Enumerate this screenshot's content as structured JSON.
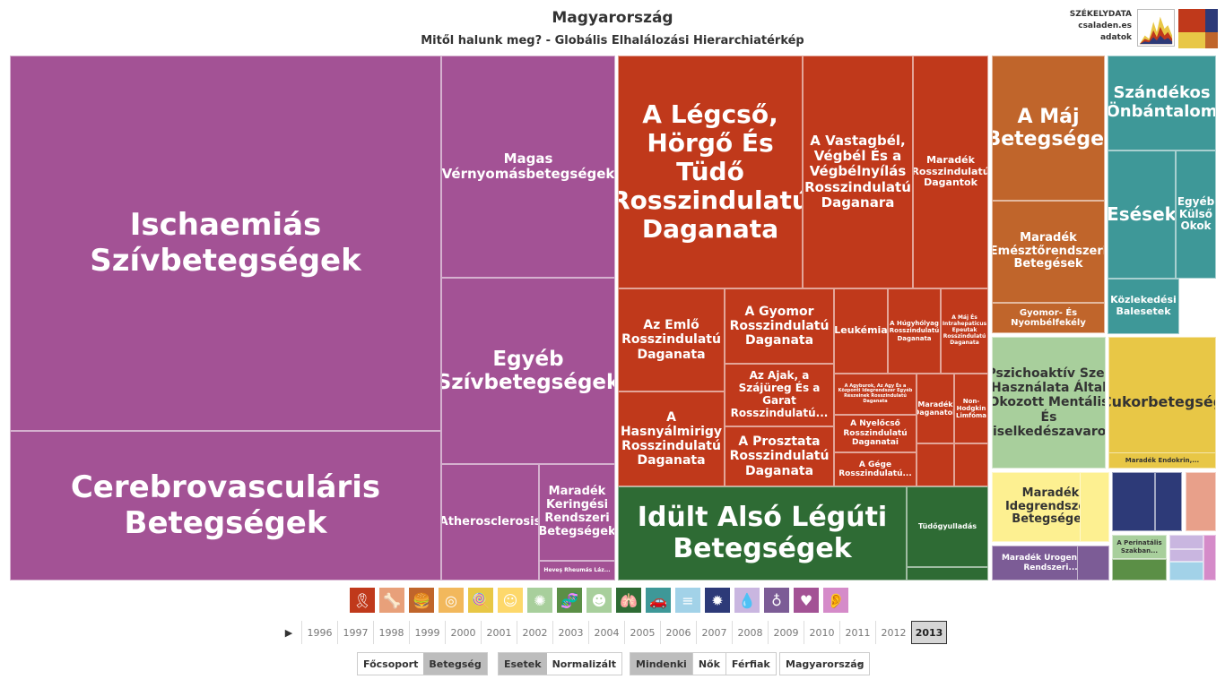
{
  "header": {
    "title": "Magyarország",
    "subtitle": "Mitől halunk meg? - Globális Elhalálozási Hierarchiatérkép"
  },
  "brand": {
    "line1": "SZÉKELYDATA",
    "line2": "csaladen.es",
    "line3": "adatok"
  },
  "chart_data": {
    "type": "treemap",
    "tiles": [
      {
        "label": "Ischaemiás Szívbetegségek",
        "group": "Keringési",
        "color": "#a35295"
      },
      {
        "label": "Cerebrovasculáris Betegségek",
        "group": "Keringési",
        "color": "#a35295"
      },
      {
        "label": "Magas Vérnyomásbetegségek",
        "group": "Keringési",
        "color": "#a35295"
      },
      {
        "label": "Egyéb Szívbetegségek",
        "group": "Keringési",
        "color": "#a35295"
      },
      {
        "label": "Atherosclerosis",
        "group": "Keringési",
        "color": "#a35295"
      },
      {
        "label": "Maradék Keringési Rendszeri Betegségek",
        "group": "Keringési",
        "color": "#a35295"
      },
      {
        "label": "Heveş Rheumás Láz...",
        "group": "Keringési",
        "color": "#a35295"
      },
      {
        "label": "A Légcső, Hörgő És Tüdő Rosszindulatú Daganata",
        "group": "Daganatok",
        "color": "#c0391b"
      },
      {
        "label": "A Vastagbél, Végbél És a Végbélnyílás Rosszindulatú Daganara",
        "group": "Daganatok",
        "color": "#c0391b"
      },
      {
        "label": "Maradék Rosszindulatú Dagantok",
        "group": "Daganatok",
        "color": "#c0391b"
      },
      {
        "label": "Az Emlő Rosszindulatú Daganata",
        "group": "Daganatok",
        "color": "#c0391b"
      },
      {
        "label": "A Gyomor Rosszindulatú Daganata",
        "group": "Daganatok",
        "color": "#c0391b"
      },
      {
        "label": "Leukémia",
        "group": "Daganatok",
        "color": "#c0391b"
      },
      {
        "label": "A Húgyhólyag Rosszindulatú Daganata",
        "group": "Daganatok",
        "color": "#c0391b"
      },
      {
        "label": "A Máj És Intrahepaticus Epeutak Rosszindulatú Daganata",
        "group": "Daganatok",
        "color": "#c0391b"
      },
      {
        "label": "A Hasnyálmirigy Rosszindulatú Daganata",
        "group": "Daganatok",
        "color": "#c0391b"
      },
      {
        "label": "Az Ajak, a Szájüreg És a Garat Rosszindulatú...",
        "group": "Daganatok",
        "color": "#c0391b"
      },
      {
        "label": "A Prosztata Rosszindulatú Daganata",
        "group": "Daganatok",
        "color": "#c0391b"
      },
      {
        "label": "A Agyburok, Az Agy És a Központi Idegrendszer Egyéb Részeinek Rosszindulatú Daganata",
        "group": "Daganatok",
        "color": "#c0391b"
      },
      {
        "label": "A Nyelőcső Rosszindulatú Daganatai",
        "group": "Daganatok",
        "color": "#c0391b"
      },
      {
        "label": "A Gége Rosszindulatú...",
        "group": "Daganatok",
        "color": "#c0391b"
      },
      {
        "label": "Maradék Daganatok",
        "group": "Daganatok",
        "color": "#c0391b"
      },
      {
        "label": "Non-Hodgkin Limfóma",
        "group": "Daganatok",
        "color": "#c0391b"
      },
      {
        "label": "Idült Alsó Légúti Betegségek",
        "group": "Légzőszervi",
        "color": "#2e6b34"
      },
      {
        "label": "Tüdőgyulladás",
        "group": "Légzőszervi",
        "color": "#2e6b34"
      },
      {
        "label": "A Máj Betegségei",
        "group": "Emésztőrendszeri",
        "color": "#c0652b"
      },
      {
        "label": "Maradék Emésztőrendszeri Betegések",
        "group": "Emésztőrendszeri",
        "color": "#c0652b"
      },
      {
        "label": "Gyomor- És Nyombélfekély",
        "group": "Emésztőrendszeri",
        "color": "#c0652b"
      },
      {
        "label": "Szándékos Önbántalom",
        "group": "Sérülések",
        "color": "#3e9898"
      },
      {
        "label": "Esések",
        "group": "Sérülések",
        "color": "#3e9898"
      },
      {
        "label": "Egyéb Külső Okok",
        "group": "Sérülések",
        "color": "#3e9898"
      },
      {
        "label": "Közlekedési Balesetek",
        "group": "Sérülések",
        "color": "#3e9898"
      },
      {
        "label": "Pszichoaktív Szer Használata Által Okozott Mentális És Viselkedészavarok",
        "group": "Mentális",
        "color": "#a8cf9c"
      },
      {
        "label": "Cukorbetegség",
        "group": "Endokrin",
        "color": "#e8c746"
      },
      {
        "label": "Maradék Endokrin,...",
        "group": "Endokrin",
        "color": "#e8c746"
      },
      {
        "label": "Maradék Idegrendszeri Betegségek",
        "group": "Ideg",
        "color": "#fdf091"
      },
      {
        "label": "Maradék Urogenitális Rendszeri...",
        "group": "Urogenitális",
        "color": "#7c5c96"
      },
      {
        "label": "A Perinatális Szakban...",
        "group": "Perinatális",
        "color": "#a8cf9c"
      }
    ]
  },
  "categories": [
    {
      "name": "ribbon-icon",
      "glyph": "🎗",
      "color": "#c0391b"
    },
    {
      "name": "bone-icon",
      "glyph": "🦴",
      "color": "#e8a07a"
    },
    {
      "name": "burger-icon",
      "glyph": "🍔",
      "color": "#c0652b"
    },
    {
      "name": "cells-icon",
      "glyph": "◎",
      "color": "#f2b85c"
    },
    {
      "name": "lollipop-icon",
      "glyph": "🍭",
      "color": "#e8c746"
    },
    {
      "name": "head-icon",
      "glyph": "☺",
      "color": "#fdd86b"
    },
    {
      "name": "virus-icon",
      "glyph": "✺",
      "color": "#a8cf9c"
    },
    {
      "name": "dna-icon",
      "glyph": "🧬",
      "color": "#5b8f46"
    },
    {
      "name": "smile-icon",
      "glyph": "☻",
      "color": "#a8cf9c"
    },
    {
      "name": "lungs-icon",
      "glyph": "🫁",
      "color": "#2e6b34"
    },
    {
      "name": "car-icon",
      "glyph": "🚗",
      "color": "#3e9898"
    },
    {
      "name": "list-icon",
      "glyph": "≡",
      "color": "#a2d2e8"
    },
    {
      "name": "microbe-icon",
      "glyph": "✹",
      "color": "#2d3a78"
    },
    {
      "name": "drop-icon",
      "glyph": "💧",
      "color": "#c9b6e0"
    },
    {
      "name": "kidney-icon",
      "glyph": "♁",
      "color": "#7c5c96"
    },
    {
      "name": "heart-icon",
      "glyph": "♥",
      "color": "#a35295"
    },
    {
      "name": "ear-icon",
      "glyph": "👂",
      "color": "#d58bc9"
    }
  ],
  "years": [
    "1996",
    "1997",
    "1998",
    "1999",
    "2000",
    "2001",
    "2002",
    "2003",
    "2004",
    "2005",
    "2006",
    "2007",
    "2008",
    "2009",
    "2010",
    "2011",
    "2012",
    "2013"
  ],
  "selected_year": "2013",
  "controls": {
    "group1": [
      "Főcsoport",
      "Betegség"
    ],
    "group2": [
      "Esetek",
      "Normalizált"
    ],
    "group3": [
      "Mindenki",
      "Nők",
      "Férfiak"
    ],
    "country": "Magyarország"
  }
}
